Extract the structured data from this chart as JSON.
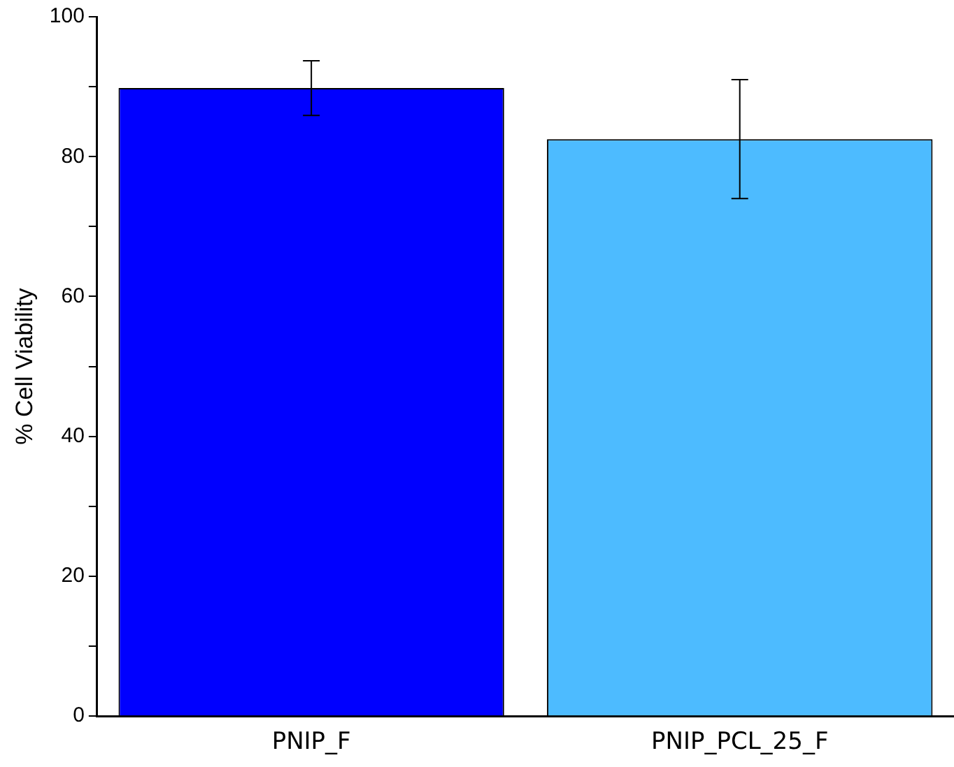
{
  "chart_data": {
    "type": "bar",
    "ylabel": "% Cell Viability",
    "categories": [
      "PNIP_F",
      "PNIP_PCL_25_F"
    ],
    "values": [
      89.8,
      82.5
    ],
    "colors": [
      "#0000ff",
      "#4dbbff"
    ],
    "errors": [
      3.9,
      8.5
    ],
    "ylim": [
      0,
      100
    ],
    "yticks": [
      0,
      {
        "value": 10,
        "label": null
      },
      20,
      {
        "value": 30,
        "label": null
      },
      40,
      {
        "value": 50,
        "label": null
      },
      60,
      {
        "value": 70,
        "label": null
      },
      80,
      {
        "value": 90,
        "label": null
      },
      100
    ],
    "grid": false
  }
}
